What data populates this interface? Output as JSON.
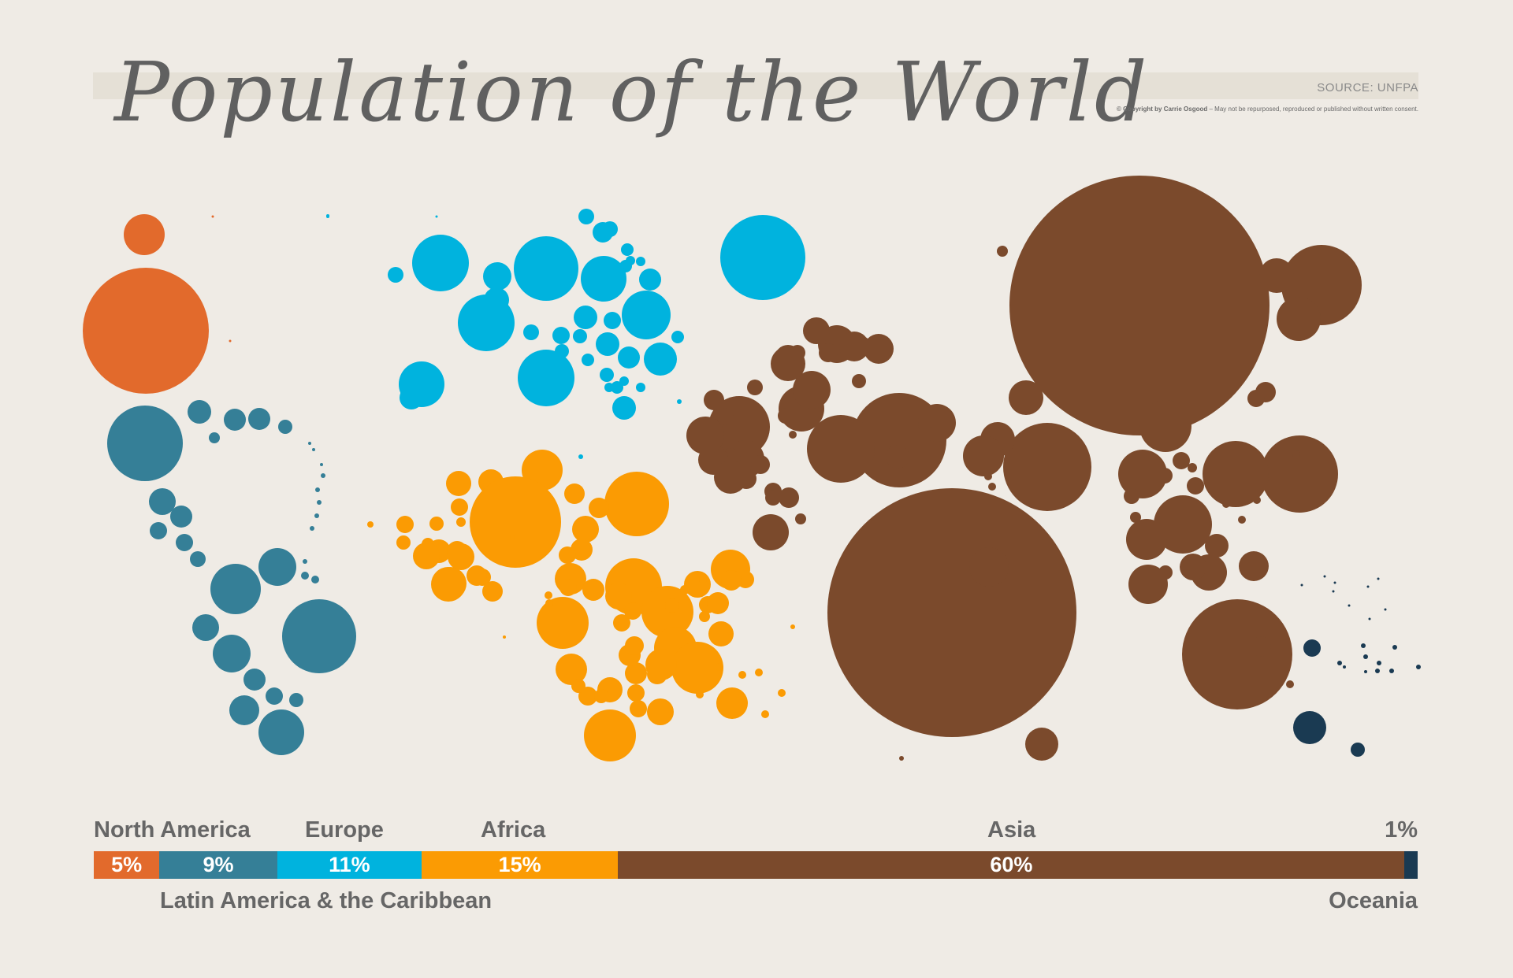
{
  "title": "Population of the World",
  "source": "SOURCE: UNFPA",
  "copyright_bold": "© Copyright by Carrie Osgood",
  "copyright_rest": " – May not be repurposed, reproduced or published without written consent.",
  "chart_data": {
    "type": "bar",
    "orientation": "horizontal-stacked",
    "unit": "%",
    "categories": [
      "North America",
      "Latin America & the Caribbean",
      "Europe",
      "Africa",
      "Asia",
      "Oceania"
    ],
    "values": [
      5,
      9,
      11,
      15,
      60,
      1
    ],
    "labels": [
      "5%",
      "9%",
      "11%",
      "15%",
      "60%",
      "1%"
    ],
    "colors": [
      "#e26a2c",
      "#357f97",
      "#00b3de",
      "#fb9b03",
      "#7b4a2c",
      "#1a3a52"
    ]
  }
}
